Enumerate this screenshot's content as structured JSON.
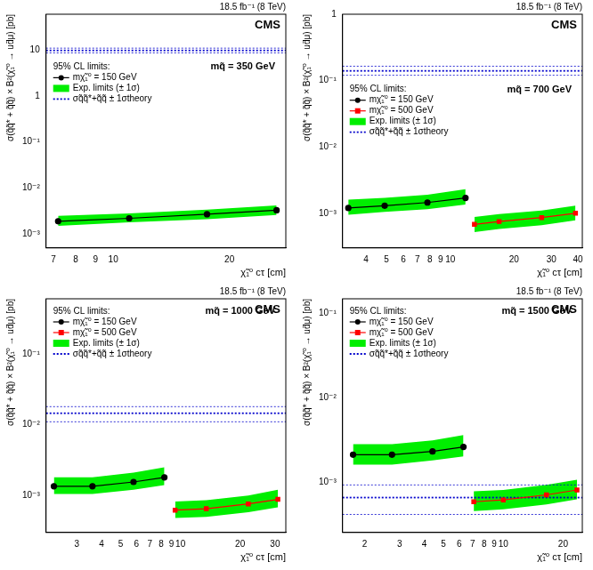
{
  "chart_data": [
    {
      "type": "line",
      "title": "CMS",
      "subtitle": "18.5 fb⁻¹ (8 TeV)",
      "annotation": "mq̃ = 350 GeV",
      "legend_title": "95% CL limits:",
      "legend": "upper left",
      "log": true,
      "grid": false,
      "x_label": "χ̃₁⁰ cτ [cm]",
      "y_label": "σ(q̃q̃* + q̃q̃) × B²(χ̃₁⁰ → ud̄μ) [pb]",
      "xlim": [
        6.7,
        28
      ],
      "xticks": [
        7,
        8,
        9,
        10,
        20
      ],
      "ylim": [
        0.0005,
        60
      ],
      "yticks": [
        {
          "value": 0.001,
          "label": "10⁻³"
        },
        {
          "value": 0.01,
          "label": "10⁻²"
        },
        {
          "value": 0.1,
          "label": "10⁻¹"
        },
        1,
        10
      ],
      "series": [
        {
          "name": "mχ̃₁⁰ = 150 GeV",
          "color": "#000000",
          "marker": "circle",
          "line_style": "solid",
          "x": [
            7.2,
            11,
            17.5,
            26.5
          ],
          "values": [
            0.0019,
            0.0022,
            0.0027,
            0.0033
          ],
          "exp_low": [
            0.0015,
            0.0018,
            0.0021,
            0.0026
          ],
          "exp_high": [
            0.0025,
            0.0028,
            0.0034,
            0.0042
          ]
        }
      ],
      "band": {
        "name": "Exp. limits (± 1σ)",
        "color": "#00ee00"
      },
      "theory": {
        "name": "σq̃q̃*+q̃q̃ ± 1σtheory",
        "color": "#0000cc",
        "line_style": "dotted",
        "value": 9.8,
        "high": 11,
        "low": 8.7
      }
    },
    {
      "type": "line",
      "title": "CMS",
      "subtitle": "18.5 fb⁻¹ (8 TeV)",
      "annotation": "mq̃ = 700 GeV",
      "legend_title": "95% CL limits:",
      "legend": "upper left",
      "log": true,
      "grid": false,
      "x_label": "χ̃₁⁰ cτ [cm]",
      "y_label": "σ(q̃q̃* + q̃q̃) × B²(χ̃₁⁰ → ud̄μ) [pb]",
      "xlim": [
        3.1,
        42
      ],
      "xticks": [
        4,
        5,
        6,
        7,
        8,
        9,
        10,
        20,
        30,
        40
      ],
      "ylim": [
        0.0003,
        1
      ],
      "yticks": [
        {
          "value": 0.001,
          "label": "10⁻³"
        },
        {
          "value": 0.01,
          "label": "10⁻²"
        },
        {
          "value": 0.1,
          "label": "10⁻¹"
        },
        1
      ],
      "series": [
        {
          "name": "mχ̃₁⁰ = 150 GeV",
          "color": "#000000",
          "marker": "circle",
          "line_style": "solid",
          "x": [
            3.3,
            4.9,
            7.8,
            11.8
          ],
          "values": [
            0.0012,
            0.0013,
            0.00145,
            0.0017
          ],
          "exp_low": [
            0.00095,
            0.00105,
            0.00115,
            0.00135
          ],
          "exp_high": [
            0.0016,
            0.0017,
            0.0019,
            0.0023
          ]
        },
        {
          "name": "mχ̃₁⁰ = 500 GeV",
          "color": "#ff0000",
          "marker": "square",
          "line_style": "solid",
          "x": [
            13,
            17,
            27,
            39
          ],
          "values": [
            0.00068,
            0.00075,
            0.00086,
            0.001
          ],
          "exp_low": [
            0.00052,
            0.00058,
            0.00066,
            0.00078
          ],
          "exp_high": [
            0.00088,
            0.00097,
            0.0011,
            0.0013
          ]
        }
      ],
      "band": {
        "name": "Exp. limits (± 1σ)",
        "color": "#00ee00"
      },
      "theory": {
        "name": "σq̃q̃*+q̃q̃ ± 1σtheory",
        "color": "#0000cc",
        "line_style": "dotted",
        "value": 0.14,
        "high": 0.165,
        "low": 0.12
      }
    },
    {
      "type": "line",
      "title": "CMS",
      "subtitle": "18.5 fb⁻¹ (8 TeV)",
      "annotation": "mq̃ = 1000 GeV",
      "legend_title": "95% CL limits:",
      "legend": "upper left",
      "log": true,
      "grid": false,
      "x_label": "χ̃₁⁰ cτ [cm]",
      "y_label": "σ(q̃q̃* + q̃q̃) × B²(χ̃₁⁰ → ud̄μ) [pb]",
      "xlim": [
        2.1,
        34
      ],
      "xticks": [
        3,
        4,
        5,
        6,
        7,
        8,
        9,
        10,
        20,
        30
      ],
      "ylim": [
        0.0003,
        0.6
      ],
      "yticks": [
        {
          "value": 0.001,
          "label": "10⁻³"
        },
        {
          "value": 0.01,
          "label": "10⁻²"
        },
        {
          "value": 0.1,
          "label": "10⁻¹"
        }
      ],
      "series": [
        {
          "name": "mχ̃₁⁰ = 150 GeV",
          "color": "#000000",
          "marker": "circle",
          "line_style": "solid",
          "x": [
            2.3,
            3.6,
            5.8,
            8.3
          ],
          "values": [
            0.00135,
            0.00135,
            0.00155,
            0.0018
          ],
          "exp_low": [
            0.00105,
            0.00105,
            0.0012,
            0.0014
          ],
          "exp_high": [
            0.0018,
            0.0018,
            0.0021,
            0.0025
          ]
        },
        {
          "name": "mχ̃₁⁰ = 500 GeV",
          "color": "#ff0000",
          "marker": "square",
          "line_style": "solid",
          "x": [
            9.4,
            13.5,
            22,
            31
          ],
          "values": [
            0.00062,
            0.00065,
            0.00076,
            0.00088
          ],
          "exp_low": [
            0.00048,
            0.0005,
            0.00058,
            0.00068
          ],
          "exp_high": [
            0.00082,
            0.00086,
            0.001,
            0.0012
          ]
        }
      ],
      "band": {
        "name": "Exp. limits (± 1σ)",
        "color": "#00ee00"
      },
      "theory": {
        "name": "σq̃q̃*+q̃q̃ ± 1σtheory",
        "color": "#0000cc",
        "line_style": "dotted",
        "value": 0.0145,
        "high": 0.018,
        "low": 0.011
      }
    },
    {
      "type": "line",
      "title": "CMS",
      "subtitle": "18.5 fb⁻¹ (8 TeV)",
      "annotation": "mq̃ = 1500 GeV",
      "legend_title": "95% CL limits:",
      "legend": "upper left",
      "log": true,
      "grid": false,
      "x_label": "χ̃₁⁰ cτ [cm]",
      "y_label": "σ(q̃q̃* + q̃q̃) × B²(χ̃₁⁰ → ud̄μ) [pb]",
      "xlim": [
        1.55,
        25
      ],
      "xticks": [
        2,
        3,
        4,
        5,
        6,
        7,
        8,
        9,
        10,
        20
      ],
      "ylim": [
        0.00025,
        0.15
      ],
      "yticks": [
        {
          "value": 0.001,
          "label": "10⁻³"
        },
        {
          "value": 0.01,
          "label": "10⁻²"
        },
        {
          "value": 0.1,
          "label": "10⁻¹"
        }
      ],
      "series": [
        {
          "name": "mχ̃₁⁰ = 150 GeV",
          "color": "#000000",
          "marker": "circle",
          "line_style": "solid",
          "x": [
            1.75,
            2.75,
            4.4,
            6.3
          ],
          "values": [
            0.0021,
            0.0021,
            0.0023,
            0.0026
          ],
          "exp_low": [
            0.0016,
            0.0016,
            0.0018,
            0.002
          ],
          "exp_high": [
            0.0028,
            0.0028,
            0.0031,
            0.0036
          ]
        },
        {
          "name": "mχ̃₁⁰ = 500 GeV",
          "color": "#ff0000",
          "marker": "square",
          "line_style": "solid",
          "x": [
            7.1,
            10,
            16.5,
            23.5
          ],
          "values": [
            0.00058,
            0.00061,
            0.0007,
            0.0008
          ],
          "exp_low": [
            0.00045,
            0.00047,
            0.00054,
            0.00062
          ],
          "exp_high": [
            0.00077,
            0.0008,
            0.00092,
            0.00106
          ]
        }
      ],
      "band": {
        "name": "Exp. limits (± 1σ)",
        "color": "#00ee00"
      },
      "theory": {
        "name": "σq̃q̃*+q̃q̃ ± 1σtheory",
        "color": "#0000cc",
        "line_style": "dotted",
        "value": 0.00065,
        "high": 0.00092,
        "low": 0.00041
      }
    }
  ]
}
